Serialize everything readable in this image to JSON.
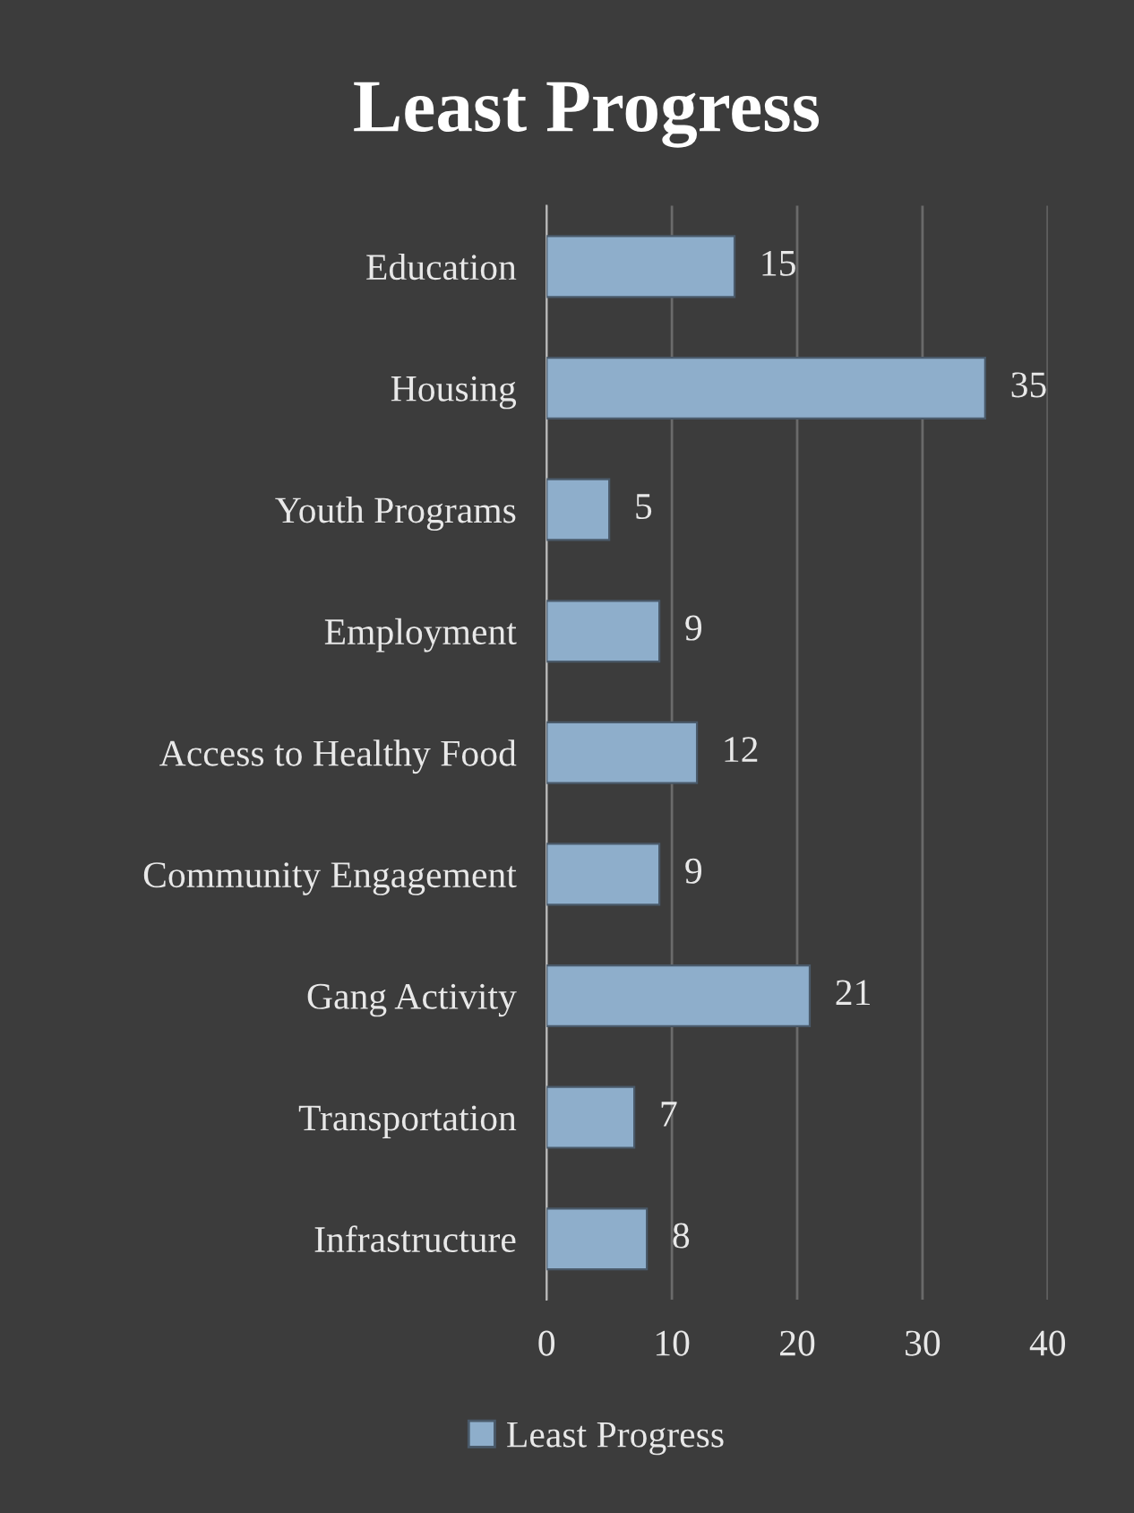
{
  "chart_data": {
    "type": "bar",
    "orientation": "horizontal",
    "title": "Least Progress",
    "categories": [
      "Education",
      "Housing",
      "Youth Programs",
      "Employment",
      "Access to Healthy Food",
      "Community Engagement",
      "Gang Activity",
      "Transportation",
      "Infrastructure"
    ],
    "series": [
      {
        "name": "Least Progress",
        "color": "#8eaecb",
        "values": [
          15,
          35,
          5,
          9,
          12,
          9,
          21,
          7,
          8
        ]
      }
    ],
    "xlim": [
      0,
      40
    ],
    "xticks": [
      0,
      10,
      20,
      30,
      40
    ],
    "grid": "x",
    "legend": "bottom",
    "data_labels": true
  }
}
